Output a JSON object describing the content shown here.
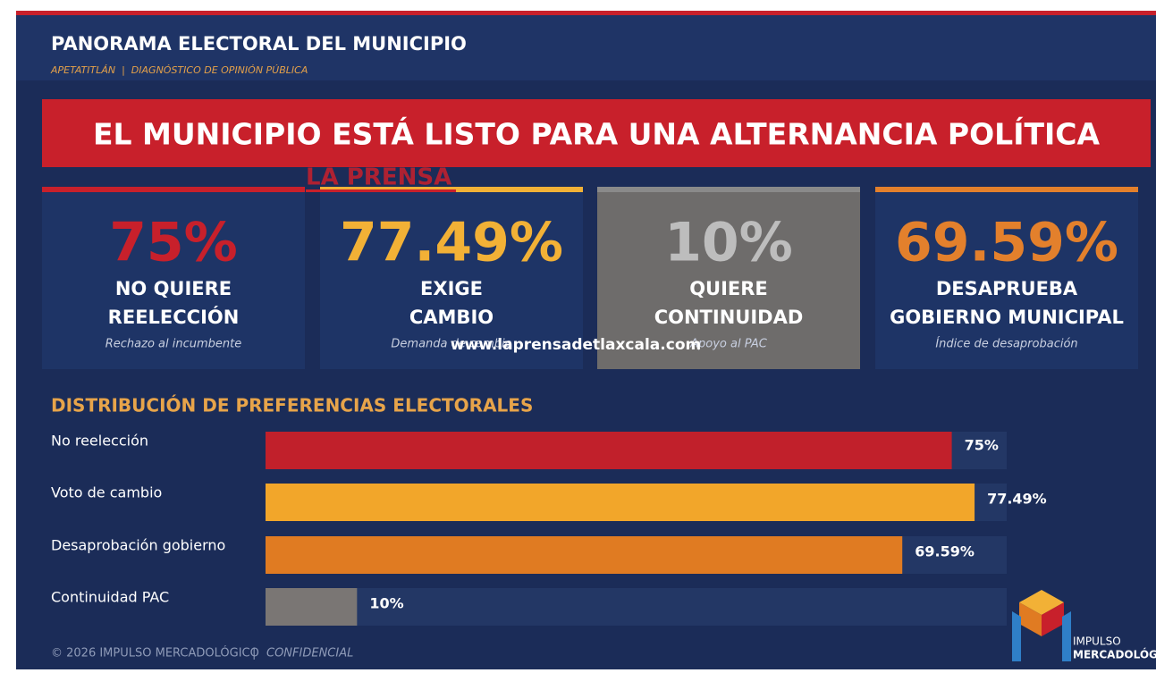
{
  "header": {
    "title": "PANORAMA ELECTORAL DEL MUNICIPIO",
    "subtitle": "APETATITLÁN  |  DIAGNÓSTICO DE OPINIÓN PÚBLICA"
  },
  "banner": "EL MUNICIPIO ESTÁ LISTO PARA UNA ALTERNANCIA POLÍTICA",
  "cards": [
    {
      "value": "75%",
      "line1": "NO QUIERE",
      "line2": "REELECCIÓN",
      "note": "Rechazo al incumbente",
      "color": "#c8202b",
      "accent": "#c8202b",
      "background": "#1e3466"
    },
    {
      "value": "77.49%",
      "line1": "EXIGE",
      "line2": "CAMBIO",
      "note": "Demanda de cambio",
      "color": "#f2b136",
      "accent": "#f2b136",
      "background": "#1e3466"
    },
    {
      "value": "10%",
      "line1": "QUIERE",
      "line2": "CONTINUIDAD",
      "note": "Apoyo al PAC",
      "color": "#bdbdbd",
      "accent": "#8a8a8a",
      "background": "#6e6c6b"
    },
    {
      "value": "69.59%",
      "line1": "DESAPRUEBA",
      "line2": "GOBIERNO MUNICIPAL",
      "note": "Índice de desaprobación",
      "color": "#e3802c",
      "accent": "#e3802c",
      "background": "#1e3466"
    }
  ],
  "chart_data": {
    "type": "hbar",
    "title": "DISTRIBUCIÓN DE PREFERENCIAS ELECTORALES",
    "categories": [
      "No reelección",
      "Voto de cambio",
      "Desaprobación gobierno",
      "Continuidad PAC"
    ],
    "values": [
      75,
      77.49,
      69.59,
      10
    ],
    "value_labels": [
      "75%",
      "77.49%",
      "69.59%",
      "10%"
    ],
    "colors": [
      "#c1202b",
      "#f2a62a",
      "#e07b22",
      "#7a7674"
    ],
    "xlim": [
      0,
      81
    ]
  },
  "footer": {
    "copyright": "© 2026 IMPULSO MERCADOLÓGICO",
    "confidential": "CONFIDENCIAL"
  },
  "logo": {
    "line1": "IMPULSO",
    "line2": "MERCADOLÓGICO"
  },
  "watermark": {
    "name": "LA PRENSA",
    "url": "www.laprensadetlaxcala.com"
  }
}
